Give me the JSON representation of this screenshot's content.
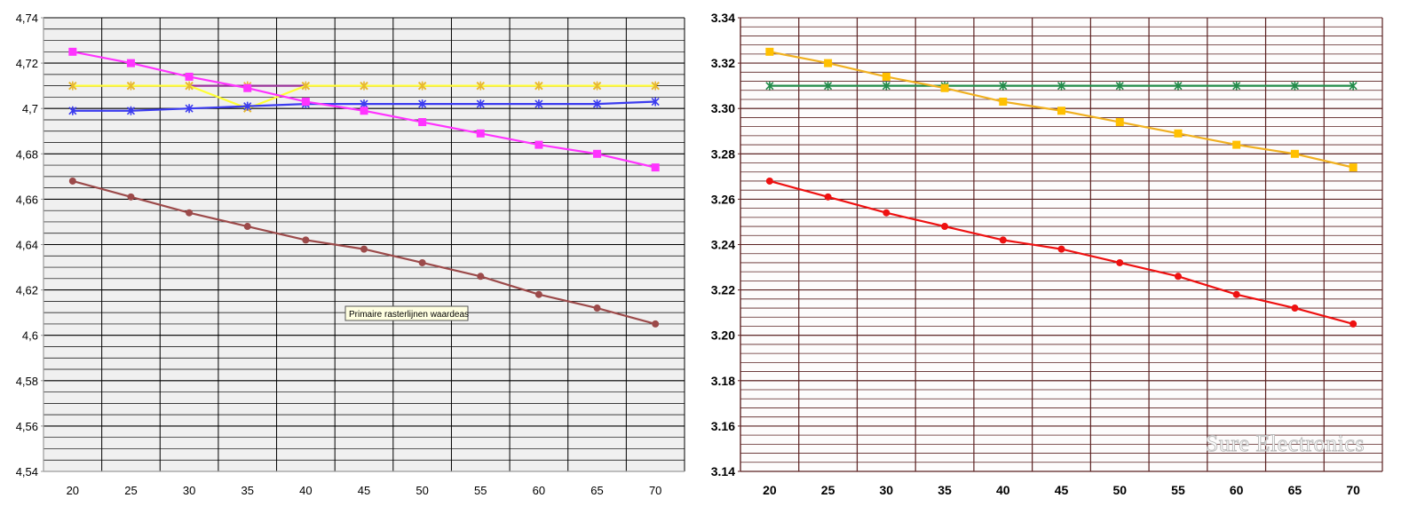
{
  "charts": {
    "left": {
      "tooltip": "Primaire rasterlijnen waardeas",
      "colors": {
        "background": "#f0f0f0",
        "grid": "#000000",
        "axis": "#9a9a9a"
      }
    },
    "right": {
      "watermark": "Sure Electronics",
      "colors": {
        "background": "#fdfcfc",
        "grid": "#5a2020",
        "axis": "#5a2020"
      }
    }
  },
  "chart_data": [
    {
      "type": "line",
      "title": "",
      "xlabel": "",
      "ylabel": "",
      "x": [
        20,
        25,
        30,
        35,
        40,
        45,
        50,
        55,
        60,
        65,
        70
      ],
      "x_tick_labels": [
        "20",
        "25",
        "30",
        "35",
        "40",
        "45",
        "50",
        "55",
        "60",
        "65",
        "70"
      ],
      "ylim": [
        4.54,
        4.74
      ],
      "y_ticks": [
        4.54,
        4.56,
        4.58,
        4.6,
        4.62,
        4.64,
        4.66,
        4.68,
        4.7,
        4.72,
        4.74
      ],
      "y_tick_labels": [
        "4,54",
        "4,56",
        "4,58",
        "4,6",
        "4,62",
        "4,64",
        "4,66",
        "4,68",
        "4,7",
        "4,72",
        "4,74"
      ],
      "minor_y_step": 0.005,
      "grid": true,
      "legend": "none",
      "series": [
        {
          "values": [
            4.71,
            4.71,
            4.71,
            4.71,
            4.71,
            4.71,
            4.71,
            4.71,
            4.71,
            4.71,
            4.71
          ],
          "color": "#993399",
          "marker": "star",
          "marker_color": "#e8b830"
        },
        {
          "values": [
            4.71,
            4.71,
            4.71,
            4.7,
            4.71,
            4.71,
            4.71,
            4.71,
            4.71,
            4.71,
            4.71
          ],
          "color": "#ffff33",
          "marker": "x",
          "marker_color": "#e8b830"
        },
        {
          "values": [
            4.699,
            4.699,
            4.7,
            4.701,
            4.702,
            4.702,
            4.702,
            4.702,
            4.702,
            4.702,
            4.703
          ],
          "color": "#3c3cf0",
          "marker": "star",
          "marker_color": "#3c3cf0"
        },
        {
          "values": [
            4.725,
            4.72,
            4.714,
            4.709,
            4.703,
            4.699,
            4.694,
            4.689,
            4.684,
            4.68,
            4.674
          ],
          "color": "#ff33ff",
          "marker": "square",
          "marker_color": "#ff33ff"
        },
        {
          "values": [
            4.668,
            4.661,
            4.654,
            4.648,
            4.642,
            4.638,
            4.632,
            4.626,
            4.618,
            4.612,
            4.605
          ],
          "color": "#9c4a4a",
          "marker": "circle",
          "marker_color": "#9c4a4a"
        }
      ]
    },
    {
      "type": "line",
      "title": "",
      "xlabel": "",
      "ylabel": "",
      "x": [
        20,
        25,
        30,
        35,
        40,
        45,
        50,
        55,
        60,
        65,
        70
      ],
      "x_tick_labels": [
        "20",
        "25",
        "30",
        "35",
        "40",
        "45",
        "50",
        "55",
        "60",
        "65",
        "70"
      ],
      "ylim": [
        3.14,
        3.34
      ],
      "y_ticks": [
        3.14,
        3.16,
        3.18,
        3.2,
        3.22,
        3.24,
        3.26,
        3.28,
        3.3,
        3.32,
        3.34
      ],
      "y_tick_labels": [
        "3.14",
        "3.16",
        "3.18",
        "3.20",
        "3.22",
        "3.24",
        "3.26",
        "3.28",
        "3.30",
        "3.32",
        "3.34"
      ],
      "minor_y_step": 0.004,
      "grid": true,
      "legend": "none",
      "series": [
        {
          "values": [
            3.31,
            3.31,
            3.31,
            3.31,
            3.31,
            3.31,
            3.31,
            3.31,
            3.31,
            3.31,
            3.31
          ],
          "color": "#228b4a",
          "marker": "star",
          "marker_color": "#228b4a"
        },
        {
          "values": [
            3.325,
            3.32,
            3.314,
            3.309,
            3.303,
            3.299,
            3.294,
            3.289,
            3.284,
            3.28,
            3.274
          ],
          "color": "#f0b020",
          "marker": "square",
          "marker_color": "#ffc000"
        },
        {
          "values": [
            3.268,
            3.261,
            3.254,
            3.248,
            3.242,
            3.238,
            3.232,
            3.226,
            3.218,
            3.212,
            3.205
          ],
          "color": "#ee1111",
          "marker": "circle",
          "marker_color": "#ee1111"
        }
      ]
    }
  ]
}
